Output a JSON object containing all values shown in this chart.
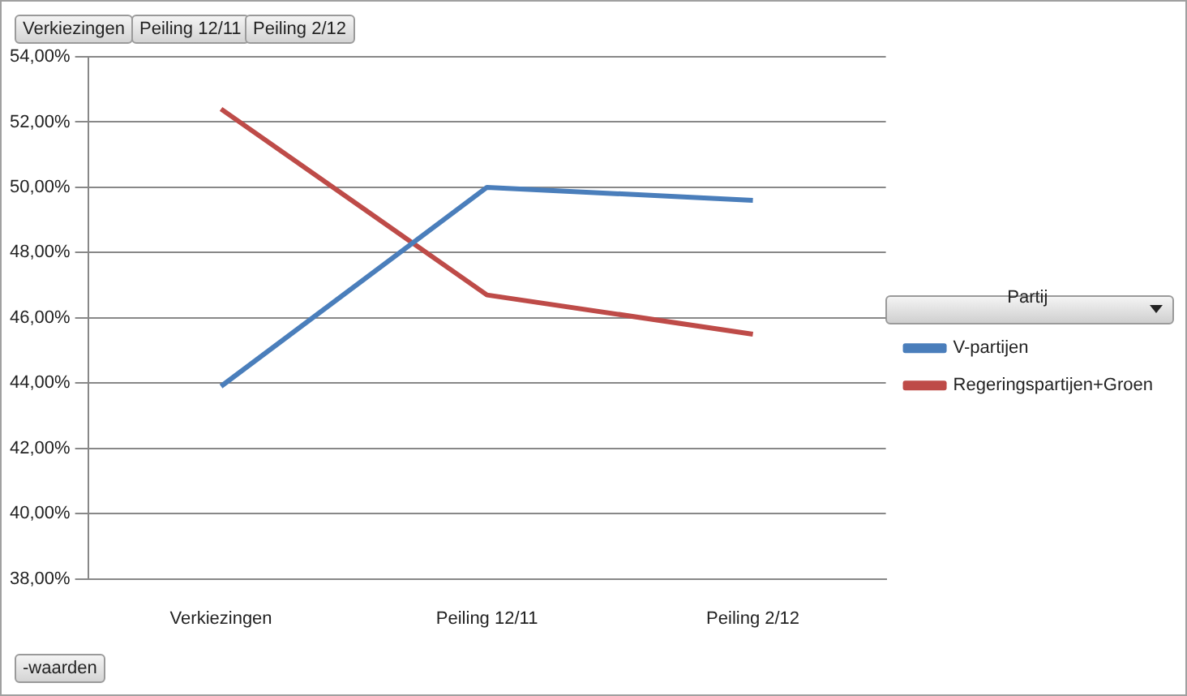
{
  "chart_data": {
    "type": "line",
    "categories": [
      "Verkiezingen",
      "Peiling 12/11",
      "Peiling 2/12"
    ],
    "series": [
      {
        "name": "V-partijen",
        "color": "#4a7ebb",
        "values": [
          43.9,
          50.0,
          49.6
        ]
      },
      {
        "name": "Regeringspartijen+Groen",
        "color": "#be4b48",
        "values": [
          52.4,
          46.7,
          45.5
        ]
      }
    ],
    "ylim": [
      38,
      54
    ],
    "yticks": [
      {
        "value": 38,
        "label": "38,00%"
      },
      {
        "value": 40,
        "label": "40,00%"
      },
      {
        "value": 42,
        "label": "42,00%"
      },
      {
        "value": 44,
        "label": "44,00%"
      },
      {
        "value": 46,
        "label": "46,00%"
      },
      {
        "value": 48,
        "label": "48,00%"
      },
      {
        "value": 50,
        "label": "50,00%"
      },
      {
        "value": 52,
        "label": "52,00%"
      },
      {
        "value": 54,
        "label": "54,00%"
      }
    ],
    "grid": "y",
    "legend": "right",
    "legend_title": "Partij",
    "marker": "none",
    "line_style": "solid",
    "annotations": [
      "Verkiezingen",
      "Peiling 12/11",
      "Peiling 2/12",
      "-waarden"
    ]
  }
}
